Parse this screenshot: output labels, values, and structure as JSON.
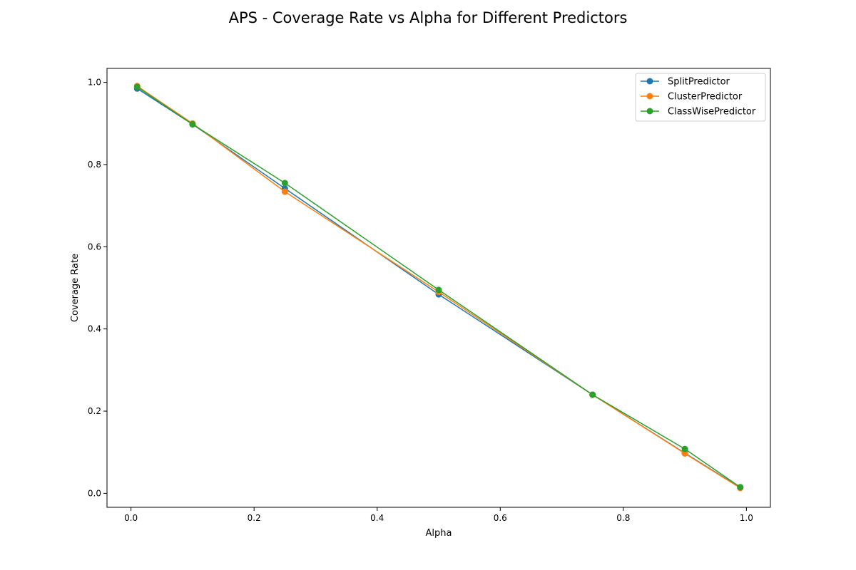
{
  "chart_data": {
    "type": "line",
    "title": "APS - Coverage Rate vs Alpha for Different Predictors",
    "xlabel": "Alpha",
    "ylabel": "Coverage Rate",
    "xlim": [
      -0.039,
      1.039
    ],
    "ylim": [
      -0.034,
      1.034
    ],
    "xticks": [
      0.0,
      0.2,
      0.4,
      0.6,
      0.8,
      1.0
    ],
    "xtick_labels": [
      "0.0",
      "0.2",
      "0.4",
      "0.6",
      "0.8",
      "1.0"
    ],
    "yticks": [
      0.0,
      0.2,
      0.4,
      0.6,
      0.8,
      1.0
    ],
    "ytick_labels": [
      "0.0",
      "0.2",
      "0.4",
      "0.6",
      "0.8",
      "1.0"
    ],
    "grid": false,
    "legend_position": "top-right",
    "x": [
      0.01,
      0.1,
      0.25,
      0.5,
      0.75,
      0.9,
      0.99
    ],
    "series": [
      {
        "name": "SplitPredictor",
        "color": "#1f77b4",
        "marker": "circle",
        "values": [
          0.985,
          0.898,
          0.742,
          0.484,
          0.24,
          0.098,
          0.014
        ]
      },
      {
        "name": "ClusterPredictor",
        "color": "#ff7f0e",
        "marker": "circle",
        "values": [
          0.991,
          0.9,
          0.734,
          0.49,
          0.24,
          0.097,
          0.013
        ]
      },
      {
        "name": "ClassWisePredictor",
        "color": "#2ca02c",
        "marker": "circle",
        "values": [
          0.989,
          0.898,
          0.755,
          0.495,
          0.24,
          0.108,
          0.015
        ]
      }
    ]
  }
}
